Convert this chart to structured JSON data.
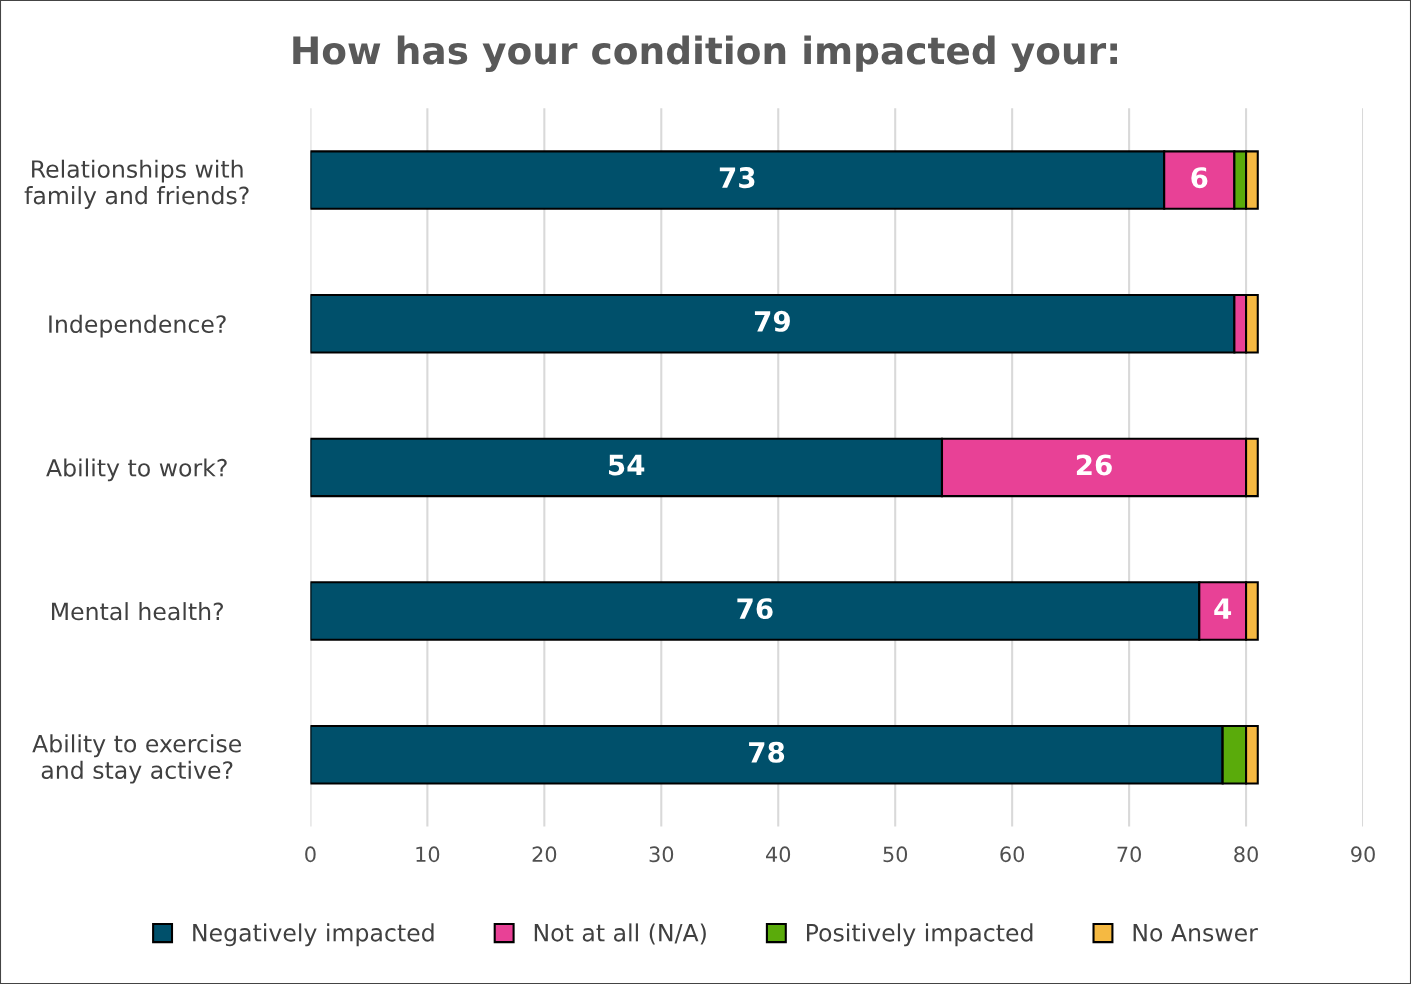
{
  "chart_data": {
    "type": "bar",
    "orientation": "horizontal",
    "stacked": true,
    "title": "How has your condition impacted your:",
    "categories": [
      "Relationships with\nfamily and friends?",
      "Independence?",
      "Ability to work?",
      "Mental health?",
      "Ability to exercise\nand stay active?"
    ],
    "series": [
      {
        "name": "Negatively impacted",
        "color": "#00506b",
        "values": [
          73,
          79,
          54,
          76,
          78
        ],
        "value_labels": [
          "73",
          "79",
          "54",
          "76",
          "78"
        ]
      },
      {
        "name": "Not at all (N/A)",
        "color": "#e84196",
        "values": [
          6,
          1,
          26,
          4,
          0
        ],
        "value_labels": [
          "6",
          null,
          "26",
          "4",
          null
        ]
      },
      {
        "name": "Positively impacted",
        "color": "#5aab0b",
        "values": [
          1,
          0,
          0,
          0,
          2
        ],
        "value_labels": [
          null,
          null,
          null,
          null,
          null
        ]
      },
      {
        "name": "No Answer",
        "color": "#f5b942",
        "values": [
          1,
          1,
          1,
          1,
          1
        ],
        "value_labels": [
          null,
          null,
          null,
          null,
          null
        ]
      }
    ],
    "xlim": [
      0,
      90
    ],
    "xticks": [
      0,
      10,
      20,
      30,
      40,
      50,
      60,
      70,
      80,
      90
    ],
    "grid": "x",
    "legend": "bottom"
  }
}
